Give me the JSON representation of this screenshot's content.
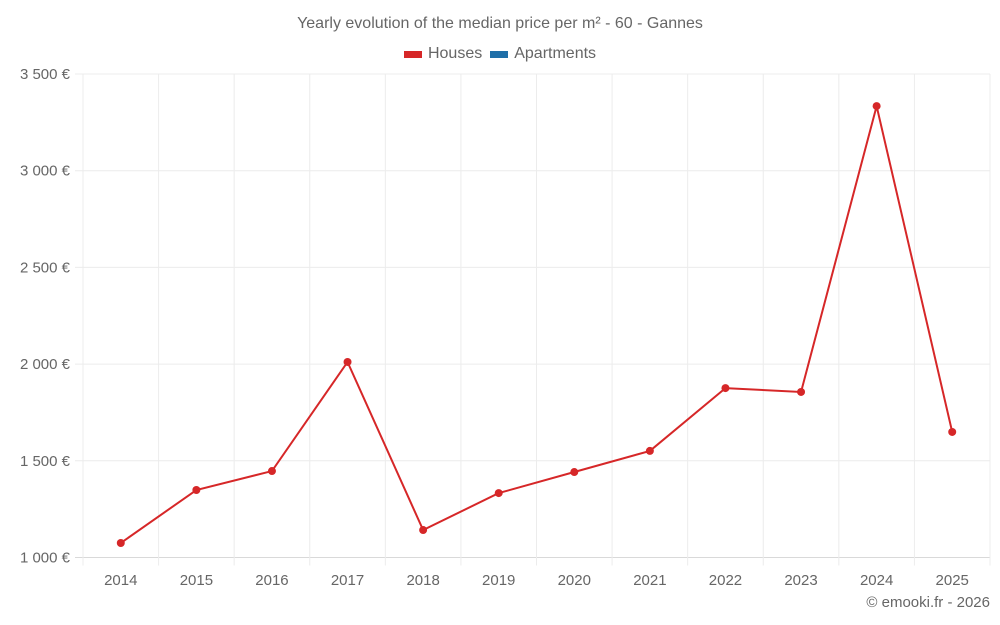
{
  "chart_data": {
    "type": "line",
    "title": "Yearly evolution of the median price per m² - 60 - Gannes",
    "xlabel": "",
    "ylabel": "",
    "categories": [
      "2014",
      "2015",
      "2016",
      "2017",
      "2018",
      "2019",
      "2020",
      "2021",
      "2022",
      "2023",
      "2024",
      "2025"
    ],
    "series": [
      {
        "name": "Houses",
        "color": "#d62728",
        "values": [
          1075,
          1349,
          1447,
          2011,
          1142,
          1333,
          1442,
          1551,
          1876,
          1856,
          3334,
          1649
        ]
      },
      {
        "name": "Apartments",
        "color": "#1f6fa8",
        "values": []
      }
    ],
    "y_ticks": [
      1000,
      1500,
      2000,
      2500,
      3000,
      3500
    ],
    "y_tick_labels": [
      "1 000 €",
      "1 500 €",
      "2 000 €",
      "2 500 €",
      "3 000 €",
      "3 500 €"
    ],
    "ylim": [
      1000,
      3500
    ],
    "grid": true,
    "legend_position": "top"
  },
  "header": {
    "title": "Yearly evolution of the median price per m² - 60 - Gannes"
  },
  "legend": {
    "items": [
      {
        "label": "Houses",
        "color": "#d62728"
      },
      {
        "label": "Apartments",
        "color": "#1f6fa8"
      }
    ]
  },
  "footer": {
    "credit": "© emooki.fr - 2026"
  }
}
